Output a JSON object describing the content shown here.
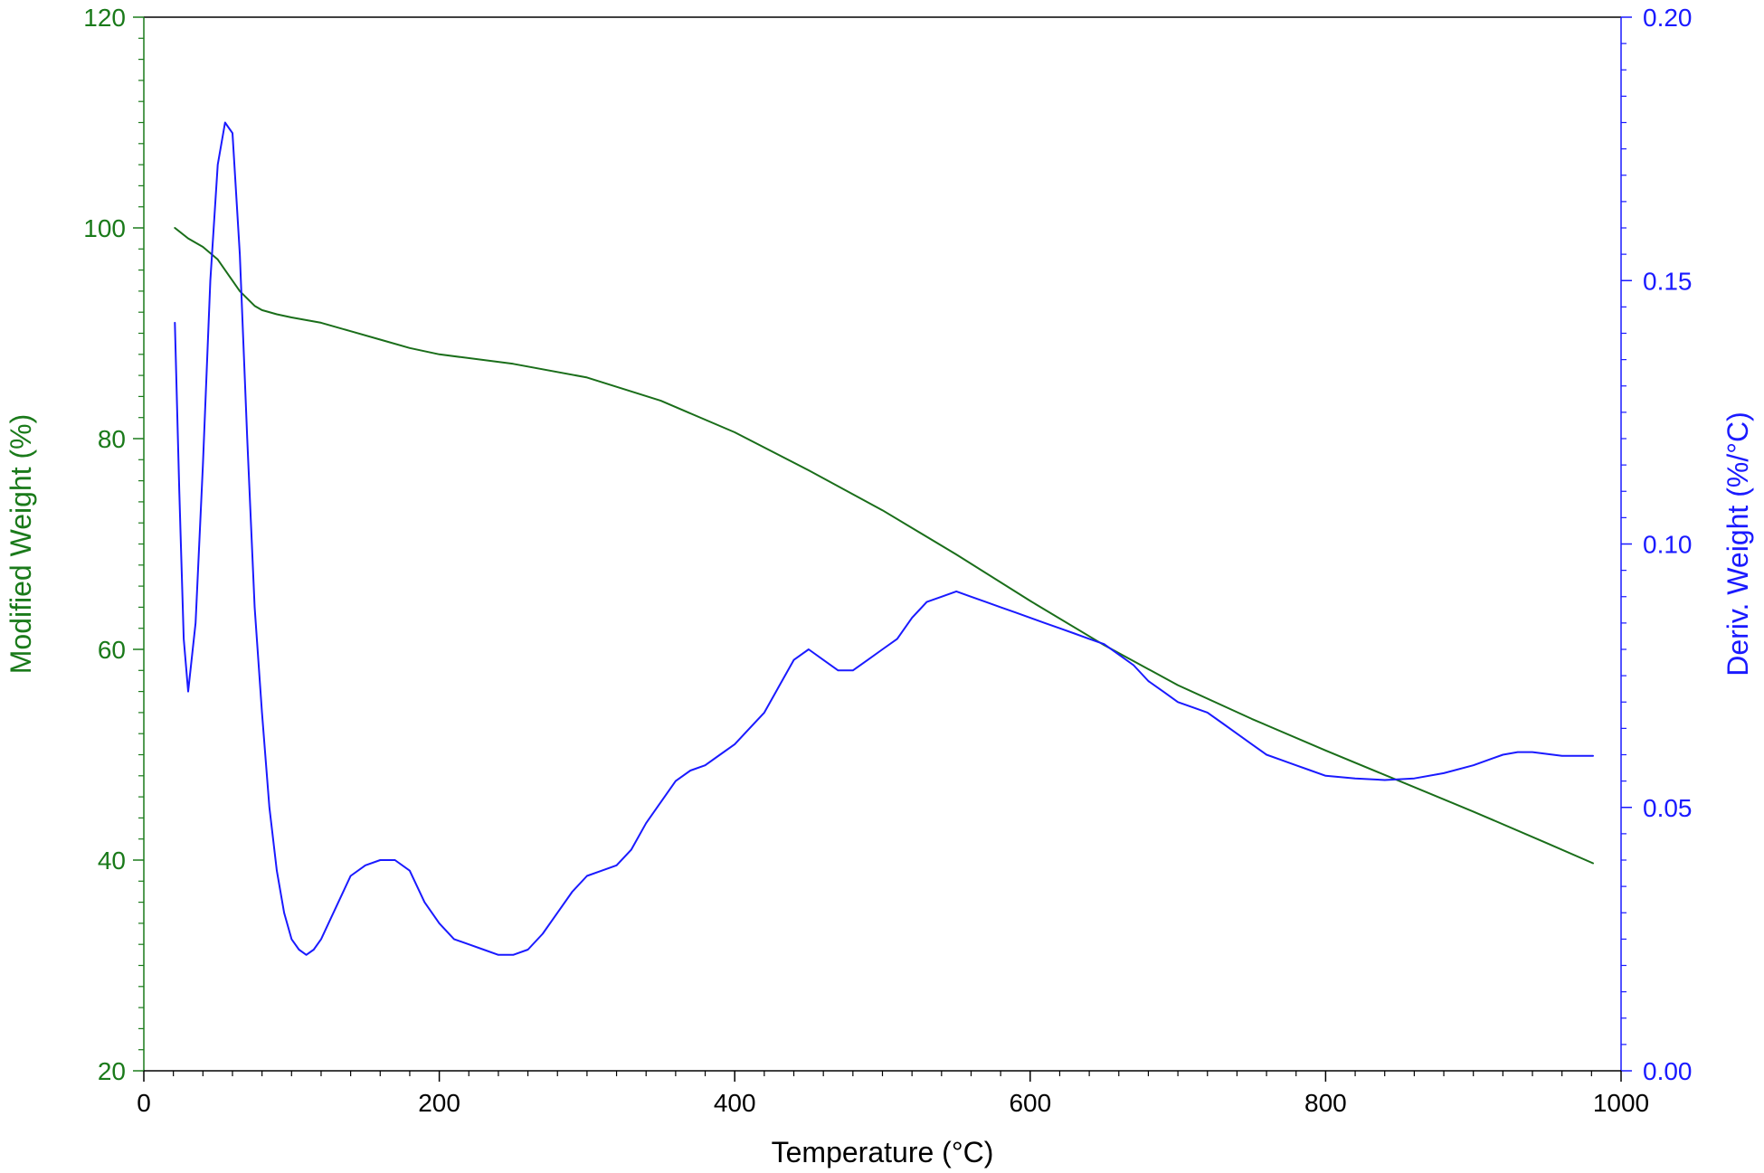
{
  "chart_data": {
    "type": "line",
    "xlabel": "Temperature (°C)",
    "ylabel_left": "Modified Weight (%)",
    "ylabel_right": "Deriv. Weight (%/°C)",
    "xlim": [
      0,
      1000
    ],
    "ylim_left": [
      20,
      120
    ],
    "ylim_right": [
      0.0,
      0.2
    ],
    "x_ticks": [
      "0",
      "200",
      "400",
      "600",
      "800",
      "1000"
    ],
    "y_left_ticks": [
      "20",
      "40",
      "60",
      "80",
      "100",
      "120"
    ],
    "y_right_ticks": [
      "0.00",
      "0.05",
      "0.10",
      "0.15",
      "0.20"
    ],
    "grid": false,
    "legend": "none",
    "colors": {
      "left_axis": "#1a7a1a",
      "right_axis": "#1a1aff",
      "weight_line": "#1a6e1a",
      "deriv_line": "#1a1aff",
      "frame": "#000000"
    },
    "series": [
      {
        "axis": "left",
        "x": [
          21,
          30,
          40,
          50,
          55,
          60,
          65,
          70,
          75,
          80,
          90,
          100,
          120,
          140,
          160,
          180,
          200,
          250,
          300,
          350,
          400,
          450,
          500,
          550,
          600,
          650,
          700,
          750,
          800,
          850,
          900,
          950,
          981
        ],
        "values": [
          100.0,
          99.0,
          98.2,
          97.0,
          96.0,
          95.0,
          94.0,
          93.3,
          92.6,
          92.2,
          91.8,
          91.5,
          91.0,
          90.2,
          89.4,
          88.6,
          88.0,
          87.1,
          85.8,
          83.6,
          80.6,
          77.0,
          73.2,
          69.0,
          64.6,
          60.4,
          56.6,
          53.4,
          50.4,
          47.5,
          44.6,
          41.6,
          39.7
        ]
      },
      {
        "axis": "right",
        "x": [
          21,
          24,
          27,
          30,
          35,
          40,
          45,
          50,
          55,
          60,
          65,
          70,
          75,
          80,
          85,
          90,
          95,
          100,
          105,
          110,
          115,
          120,
          130,
          140,
          150,
          160,
          170,
          180,
          190,
          200,
          210,
          220,
          230,
          240,
          250,
          260,
          270,
          280,
          290,
          300,
          310,
          320,
          330,
          340,
          350,
          360,
          370,
          380,
          390,
          400,
          410,
          420,
          430,
          440,
          450,
          460,
          470,
          480,
          490,
          500,
          510,
          520,
          530,
          540,
          550,
          560,
          570,
          580,
          590,
          600,
          610,
          620,
          630,
          640,
          650,
          660,
          670,
          680,
          690,
          700,
          710,
          720,
          730,
          740,
          750,
          760,
          770,
          780,
          790,
          800,
          820,
          840,
          860,
          880,
          900,
          920,
          930,
          940,
          960,
          981
        ],
        "values": [
          0.142,
          0.11,
          0.082,
          0.072,
          0.085,
          0.115,
          0.15,
          0.172,
          0.18,
          0.178,
          0.155,
          0.12,
          0.088,
          0.068,
          0.05,
          0.038,
          0.03,
          0.025,
          0.023,
          0.022,
          0.023,
          0.025,
          0.031,
          0.037,
          0.039,
          0.04,
          0.04,
          0.038,
          0.032,
          0.028,
          0.025,
          0.024,
          0.023,
          0.022,
          0.022,
          0.023,
          0.026,
          0.03,
          0.034,
          0.037,
          0.038,
          0.039,
          0.042,
          0.047,
          0.051,
          0.055,
          0.057,
          0.058,
          0.06,
          0.062,
          0.065,
          0.068,
          0.073,
          0.078,
          0.08,
          0.078,
          0.076,
          0.076,
          0.078,
          0.08,
          0.082,
          0.086,
          0.089,
          0.09,
          0.091,
          0.09,
          0.089,
          0.088,
          0.087,
          0.086,
          0.085,
          0.084,
          0.083,
          0.082,
          0.081,
          0.079,
          0.077,
          0.074,
          0.072,
          0.07,
          0.069,
          0.068,
          0.066,
          0.064,
          0.062,
          0.06,
          0.059,
          0.058,
          0.057,
          0.056,
          0.0555,
          0.0552,
          0.0555,
          0.0565,
          0.058,
          0.06,
          0.0605,
          0.0605,
          0.0598,
          0.0598
        ]
      }
    ]
  }
}
